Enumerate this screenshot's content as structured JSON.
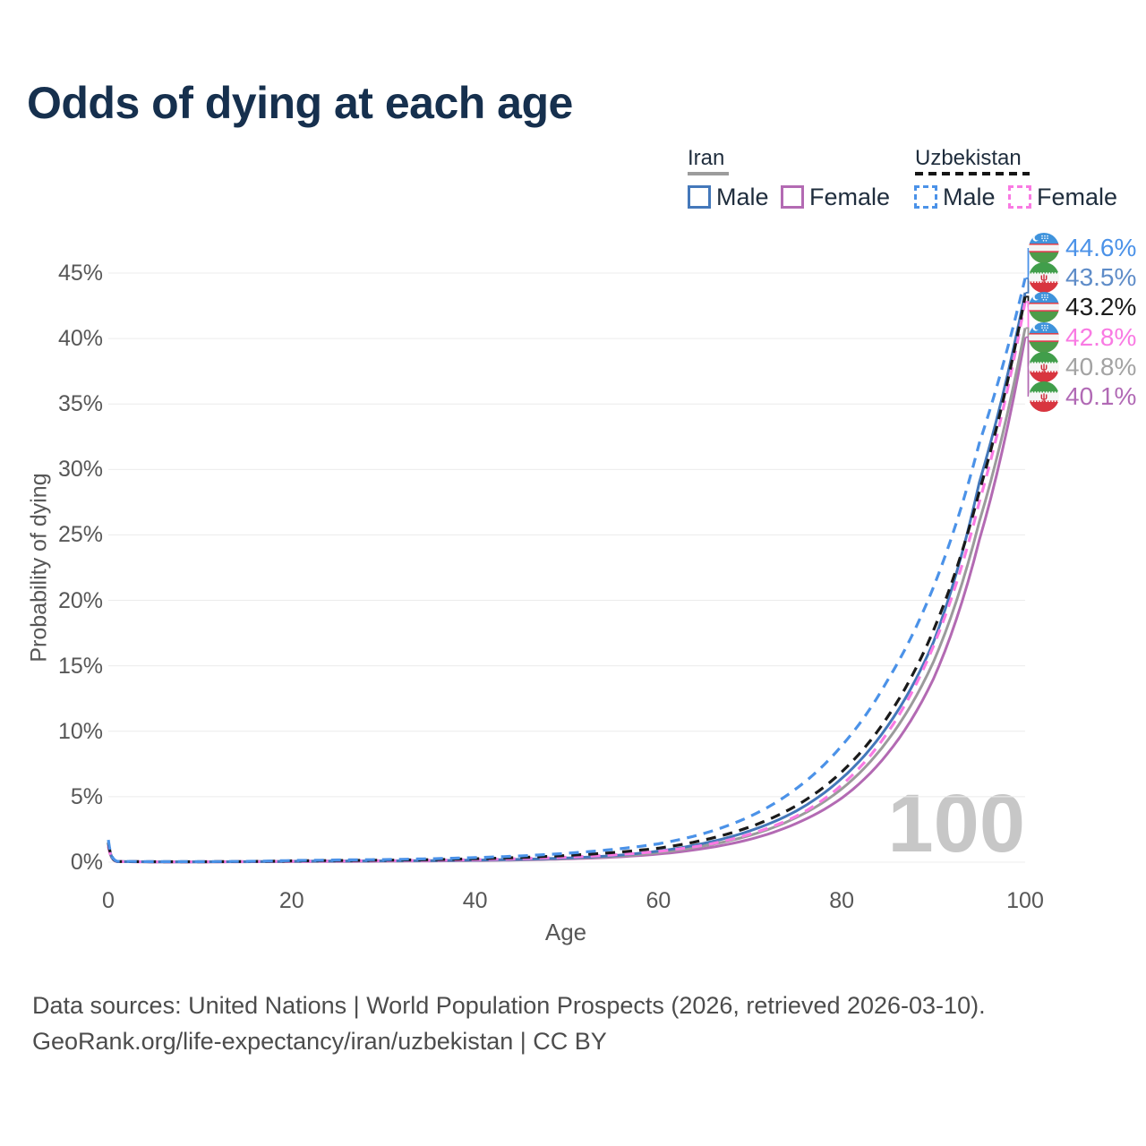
{
  "title": "Odds of dying at each age",
  "watermark_age": "100",
  "legend": {
    "iran": {
      "label": "Iran",
      "male": "Male",
      "female": "Female"
    },
    "uzbekistan": {
      "label": "Uzbekistan",
      "male": "Male",
      "female": "Female"
    }
  },
  "footer": {
    "line1": "Data sources: United Nations | World Population Prospects (2026, retrieved 2026-03-10).",
    "line2": "GeoRank.org/life-expectancy/iran/uzbekistan | CC BY"
  },
  "chart_data": {
    "type": "line",
    "title": "Odds of dying at each age",
    "xlabel": "Age",
    "ylabel": "Probability of dying",
    "xlim": [
      0,
      100
    ],
    "ylim": [
      0,
      45
    ],
    "grid": "horizontal",
    "legend_position": "top-right",
    "x_ticks": [
      {
        "v": 0,
        "label": "0"
      },
      {
        "v": 20,
        "label": "20"
      },
      {
        "v": 40,
        "label": "40"
      },
      {
        "v": 60,
        "label": "60"
      },
      {
        "v": 80,
        "label": "80"
      },
      {
        "v": 100,
        "label": "100"
      }
    ],
    "y_ticks": [
      {
        "v": 0,
        "label": "0%"
      },
      {
        "v": 5,
        "label": "5%"
      },
      {
        "v": 10,
        "label": "10%"
      },
      {
        "v": 15,
        "label": "15%"
      },
      {
        "v": 20,
        "label": "20%"
      },
      {
        "v": 25,
        "label": "25%"
      },
      {
        "v": 30,
        "label": "30%"
      },
      {
        "v": 35,
        "label": "35%"
      },
      {
        "v": 40,
        "label": "40%"
      },
      {
        "v": 45,
        "label": "45%"
      }
    ],
    "x": [
      0,
      1,
      5,
      10,
      15,
      20,
      25,
      30,
      35,
      40,
      45,
      50,
      55,
      60,
      65,
      70,
      75,
      80,
      85,
      90,
      95,
      100
    ],
    "series": [
      {
        "name": "Uzbekistan Male",
        "country": "Uzbekistan",
        "sex": "male",
        "style": "dashed",
        "flag": "uzbekistan",
        "color": "#4b92e8",
        "label_color": "#4b92e8",
        "end_label": "44.6%",
        "values": [
          1.7,
          0.06,
          0.04,
          0.04,
          0.06,
          0.13,
          0.17,
          0.2,
          0.26,
          0.35,
          0.48,
          0.68,
          0.97,
          1.4,
          2.2,
          3.5,
          5.6,
          8.9,
          13.9,
          21.0,
          32.0,
          44.6
        ]
      },
      {
        "name": "Iran Male",
        "country": "Iran",
        "sex": "male",
        "style": "solid",
        "flag": "iran",
        "color": "#4478ba",
        "label_color": "#5e8cc8",
        "end_label": "43.5%",
        "values": [
          1.5,
          0.05,
          0.03,
          0.03,
          0.04,
          0.07,
          0.09,
          0.1,
          0.12,
          0.16,
          0.22,
          0.32,
          0.5,
          0.85,
          1.45,
          2.4,
          3.9,
          6.4,
          10.4,
          16.8,
          29.0,
          43.5
        ]
      },
      {
        "name": "Uzbekistan Both sexes",
        "country": "Uzbekistan",
        "sex": "both",
        "style": "dashed",
        "flag": "uzbekistan",
        "color": "#1a1a1a",
        "label_color": "#1c1c1c",
        "end_label": "43.2%",
        "values": [
          1.5,
          0.05,
          0.035,
          0.035,
          0.05,
          0.1,
          0.13,
          0.15,
          0.19,
          0.26,
          0.36,
          0.51,
          0.73,
          1.07,
          1.7,
          2.7,
          4.3,
          6.9,
          11.1,
          17.7,
          28.3,
          43.2
        ]
      },
      {
        "name": "Uzbekistan Female",
        "country": "Uzbekistan",
        "sex": "female",
        "style": "dashed",
        "flag": "uzbekistan",
        "color": "#f97ae3",
        "label_color": "#f97ae3",
        "end_label": "42.8%",
        "values": [
          1.3,
          0.04,
          0.03,
          0.03,
          0.04,
          0.07,
          0.09,
          0.11,
          0.14,
          0.19,
          0.27,
          0.38,
          0.55,
          0.82,
          1.3,
          2.15,
          3.5,
          5.9,
          9.9,
          16.5,
          27.5,
          42.8
        ]
      },
      {
        "name": "Iran Both sexes",
        "country": "Iran",
        "sex": "both",
        "style": "solid",
        "flag": "iran",
        "color": "#9b9b9b",
        "label_color": "#a3a3a3",
        "end_label": "40.8%",
        "values": [
          1.35,
          0.045,
          0.025,
          0.025,
          0.035,
          0.055,
          0.07,
          0.085,
          0.105,
          0.14,
          0.2,
          0.29,
          0.44,
          0.73,
          1.25,
          2.05,
          3.4,
          5.6,
          9.3,
          15.3,
          26.0,
          40.8
        ]
      },
      {
        "name": "Iran Female",
        "country": "Iran",
        "sex": "female",
        "style": "solid",
        "flag": "iran",
        "color": "#b36ab3",
        "label_color": "#b16ab5",
        "end_label": "40.1%",
        "values": [
          1.2,
          0.04,
          0.02,
          0.02,
          0.03,
          0.04,
          0.05,
          0.07,
          0.09,
          0.12,
          0.17,
          0.25,
          0.38,
          0.62,
          1.05,
          1.75,
          2.95,
          4.9,
          8.3,
          14.0,
          24.6,
          40.1
        ]
      }
    ]
  }
}
